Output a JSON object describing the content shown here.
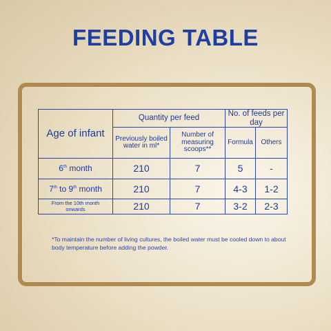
{
  "title": "FEEDING TABLE",
  "table": {
    "age_header": "Age of infant",
    "quantity_header": "Quantity per feed",
    "feeds_header": "No. of feeds per day",
    "water_header_line1": "Previously boiled",
    "water_header_line2": "water in ml*",
    "scoops_header_line1": "Number of",
    "scoops_header_line2": "measuring scoops**",
    "formula_header": "Formula",
    "others_header": "Others",
    "rows": [
      {
        "age_pre": "6",
        "age_sup": "th",
        "age_post": " month",
        "water": "210",
        "scoops": "7",
        "formula": "5",
        "others": "-"
      },
      {
        "age_pre": "7",
        "age_sup": "th",
        "age_mid": " to 9",
        "age_sup2": "th",
        "age_post": " month",
        "water": "210",
        "scoops": "7",
        "formula": "4-3",
        "others": "1-2"
      },
      {
        "age_line1": "From the 10th month",
        "age_line2": "onwards",
        "water": "210",
        "scoops": "7",
        "formula": "3-2",
        "others": "2-3"
      }
    ]
  },
  "note_line1": "*To maintain the number of living cultures, the boiled water must be cooled down to about",
  "note_line2": "body temperature  before adding the powder.",
  "colors": {
    "text": "#1b3a9a",
    "border": "#2747a8",
    "frame": "#b08a4e"
  }
}
